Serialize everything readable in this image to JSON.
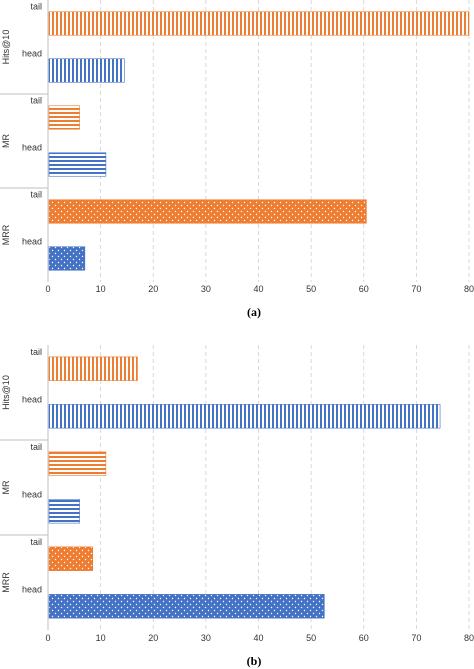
{
  "colors": {
    "head": "#4472c4",
    "tail": "#ed7d31",
    "grid": "#cfcfcf",
    "axis": "#bfbfbf"
  },
  "chart_data": [
    {
      "type": "bar",
      "orientation": "horizontal",
      "caption": "(a)",
      "xlim": [
        0,
        80
      ],
      "xticks": [
        "0",
        "10",
        "20",
        "30",
        "40",
        "50",
        "60",
        "70",
        "80"
      ],
      "grid": "vertical dashed",
      "groups": [
        {
          "label": "Hits@10",
          "bars": [
            {
              "label": "tail",
              "value": 80
            },
            {
              "label": "head",
              "value": 14.5
            }
          ]
        },
        {
          "label": "MR",
          "bars": [
            {
              "label": "tail",
              "value": 6
            },
            {
              "label": "head",
              "value": 11
            }
          ]
        },
        {
          "label": "MRR",
          "bars": [
            {
              "label": "tail",
              "value": 60.5
            },
            {
              "label": "head",
              "value": 7
            }
          ]
        }
      ]
    },
    {
      "type": "bar",
      "orientation": "horizontal",
      "caption": "(b)",
      "xlim": [
        0,
        80
      ],
      "xticks": [
        "0",
        "10",
        "20",
        "30",
        "40",
        "50",
        "60",
        "70",
        "80"
      ],
      "grid": "vertical dashed",
      "groups": [
        {
          "label": "Hits@10",
          "bars": [
            {
              "label": "tail",
              "value": 17
            },
            {
              "label": "head",
              "value": 74.5
            }
          ]
        },
        {
          "label": "MR",
          "bars": [
            {
              "label": "tail",
              "value": 11
            },
            {
              "label": "head",
              "value": 6
            }
          ]
        },
        {
          "label": "MRR",
          "bars": [
            {
              "label": "tail",
              "value": 8.5
            },
            {
              "label": "head",
              "value": 52.5
            }
          ]
        }
      ]
    }
  ]
}
